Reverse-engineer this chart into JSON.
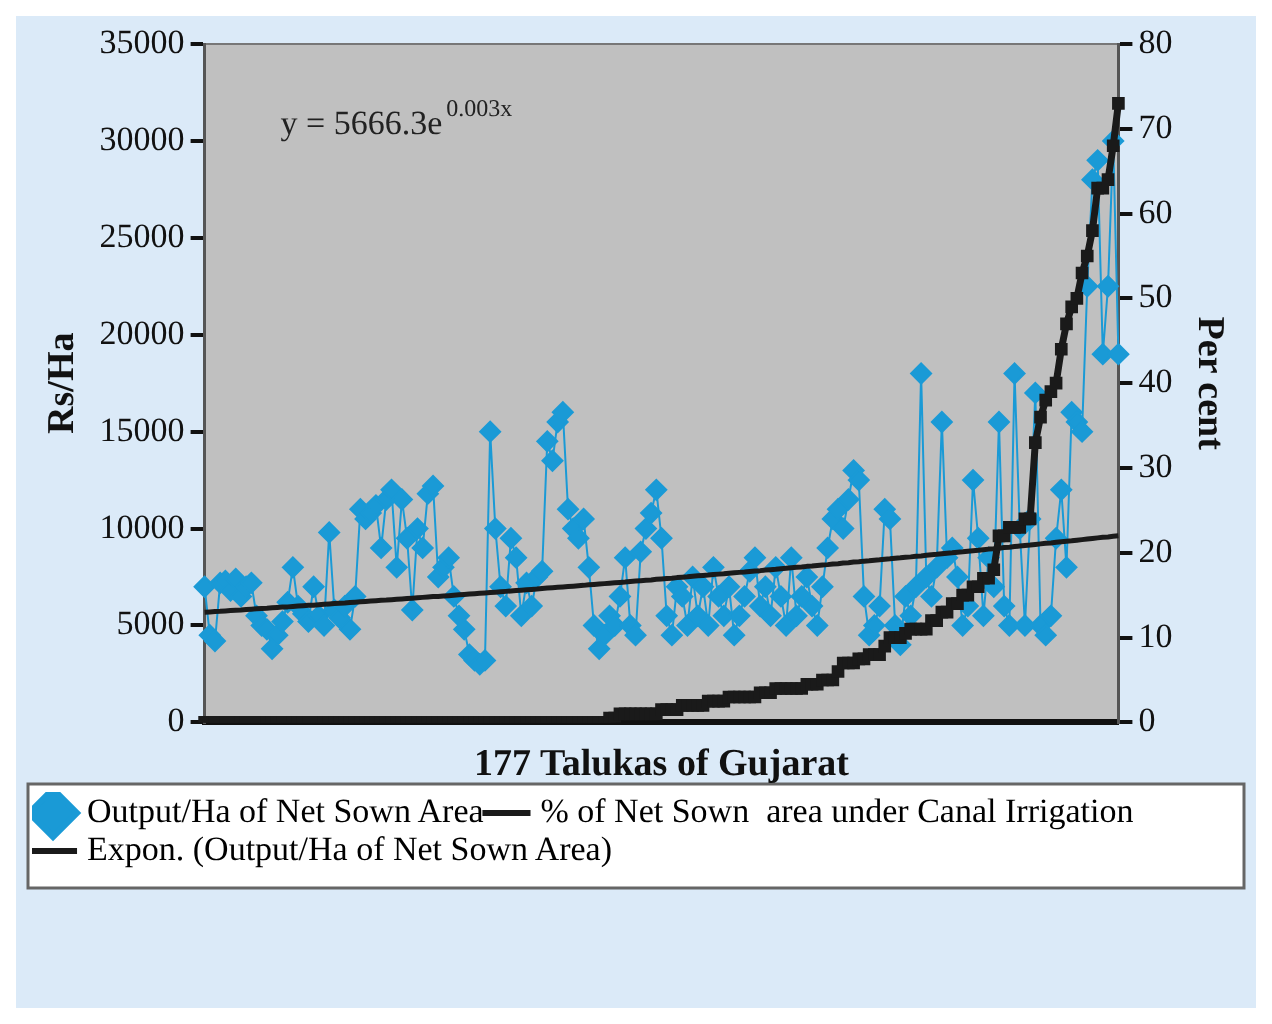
{
  "chart_data": {
    "type": "line",
    "xlabel": "177 Talukas of Gujarat",
    "ylabel": "Rs/Ha",
    "y2label": "Per cent",
    "categories": [
      null,
      null,
      null,
      null,
      null,
      null,
      null,
      null,
      null,
      null,
      null,
      null,
      null,
      null,
      null,
      null,
      null,
      null,
      null,
      null,
      null,
      null,
      null,
      null,
      null,
      null,
      null,
      null,
      null,
      null,
      null,
      null,
      null,
      null,
      null,
      null,
      null,
      null,
      null,
      null,
      null,
      null,
      null,
      null,
      null,
      null,
      null,
      null,
      null,
      null,
      null,
      null,
      null,
      null,
      null,
      null,
      null,
      null,
      null,
      null,
      null,
      null,
      null,
      null,
      null,
      null,
      null,
      null,
      null,
      null,
      null,
      null,
      null,
      null,
      null,
      null,
      null,
      null,
      null,
      null,
      null,
      null,
      null,
      null,
      null,
      null,
      null,
      null,
      null,
      null,
      null,
      null,
      null,
      null,
      null,
      null,
      null,
      null,
      null,
      null,
      null,
      null,
      null,
      null,
      null,
      null,
      null,
      null,
      null,
      null,
      null,
      null,
      null,
      null,
      null,
      null,
      null,
      null,
      null,
      null,
      null,
      null,
      null,
      null,
      null,
      null,
      null,
      null,
      null,
      null,
      null,
      null,
      null,
      null,
      null,
      null,
      null,
      null,
      null,
      null,
      null,
      null,
      null,
      null,
      null,
      null,
      null,
      null,
      null,
      null,
      null,
      null,
      null,
      null,
      null,
      null,
      null,
      null,
      null,
      null,
      null,
      null,
      null,
      null,
      null,
      null,
      null,
      null,
      null,
      null,
      null,
      null,
      null,
      null,
      null,
      null,
      null
    ],
    "series": [
      {
        "name": "Output/Ha of Net Sown Area",
        "color": "#1a9ad6",
        "marker": "diamond",
        "values": [
          7000,
          4500,
          4200,
          7200,
          7300,
          6800,
          7400,
          6500,
          7000,
          7200,
          5500,
          5000,
          4800,
          3800,
          4500,
          5200,
          6200,
          8000,
          6000,
          5600,
          5200,
          7000,
          5500,
          5000,
          9800,
          5800,
          5400,
          6000,
          4800,
          6500,
          11000,
          10500,
          10800,
          11200,
          9000,
          11500,
          12000,
          8000,
          11500,
          9500,
          5800,
          10000,
          9000,
          11800,
          12200,
          7500,
          8000,
          8500,
          6500,
          5500,
          4800,
          3500,
          3200,
          3000,
          3200,
          15000,
          10000,
          7000,
          6000,
          9500,
          8500,
          5500,
          7200,
          6000,
          7500,
          7800,
          14500,
          13500,
          15500,
          16000,
          11000,
          10000,
          9500,
          10500,
          8000,
          5000,
          3800,
          4500,
          5500,
          5000,
          6500,
          8500,
          5000,
          4500,
          8800,
          10000,
          10800,
          12000,
          9500,
          5500,
          4500,
          7000,
          6500,
          5000,
          7500,
          5500,
          7000,
          5000,
          8000,
          6500,
          5500,
          7000,
          4500,
          5500,
          6500,
          7800,
          8500,
          6000,
          7000,
          5500,
          8000,
          6500,
          5000,
          8500,
          5500,
          6500,
          7500,
          6000,
          5000,
          7000,
          9000,
          10500,
          11000,
          10000,
          11500,
          13000,
          12500,
          6500,
          4500,
          5000,
          6000,
          11000,
          10500,
          5000,
          4000,
          6500,
          5500,
          7000,
          18000,
          7500,
          6500,
          8000,
          15500,
          8500,
          9000,
          7500,
          5000,
          6000,
          12500,
          9500,
          5500,
          8500,
          7000,
          15500,
          6000,
          5000,
          18000,
          10000,
          5000,
          10500,
          17000,
          5000,
          4500,
          5500,
          9500,
          12000,
          8000,
          16000,
          15500,
          15000,
          22500,
          28000,
          29000,
          19000,
          22500,
          30000,
          19000
        ]
      },
      {
        "name": "% of Net Sown  area under Canal Irrigation",
        "color": "#1a1a1a",
        "marker": "square",
        "axis": "y2",
        "values": [
          0,
          0,
          0,
          0,
          0,
          0,
          0,
          0,
          0,
          0,
          0,
          0,
          0,
          0,
          0,
          0,
          0,
          0,
          0,
          0,
          0,
          0,
          0,
          0,
          0,
          0,
          0,
          0,
          0,
          0,
          0,
          0,
          0,
          0,
          0,
          0,
          0,
          0,
          0,
          0,
          0,
          0,
          0,
          0,
          0,
          0,
          0,
          0,
          0,
          0,
          0,
          0,
          0,
          0,
          0,
          0,
          0,
          0,
          0,
          0,
          0,
          0,
          0,
          0,
          0,
          0,
          0,
          0,
          0,
          0,
          0,
          0,
          0,
          0,
          0,
          0,
          0,
          0,
          0.5,
          0.5,
          1,
          1,
          1,
          1,
          1,
          1,
          1,
          1,
          1.5,
          1.5,
          1.5,
          1.5,
          2,
          2,
          2,
          2,
          2,
          2.5,
          2.5,
          2.5,
          2.5,
          3,
          3,
          3,
          3,
          3,
          3,
          3.5,
          3.5,
          3.5,
          4,
          4,
          4,
          4,
          4,
          4,
          4.5,
          4.5,
          4.5,
          5,
          5,
          5,
          6,
          7,
          7,
          7,
          7.5,
          7.5,
          8,
          8,
          8,
          9,
          10,
          10,
          10,
          10.5,
          11,
          11,
          11,
          11,
          12,
          12,
          13,
          13,
          14,
          14,
          15,
          15,
          16,
          16,
          17,
          17,
          18,
          22,
          22,
          23,
          23,
          23,
          24,
          24,
          33,
          36,
          38,
          39,
          40,
          44,
          47,
          49,
          50,
          53,
          55,
          58,
          63,
          63,
          64,
          68,
          73
        ]
      },
      {
        "name": "Expon. (Output/Ha of Net Sown Area)",
        "color": "#1a1a1a",
        "marker": "none",
        "type": "line",
        "values": [
          5680,
          5700,
          5720,
          5730,
          5750,
          5770,
          5790,
          5800,
          5820,
          5840,
          5860,
          5880,
          5890,
          5910,
          5930,
          5950,
          5960,
          5980,
          6000,
          6020,
          6040,
          6050,
          6070,
          6090,
          6110,
          6130,
          6150,
          6160,
          6180,
          6200,
          6220,
          6240,
          6260,
          6280,
          6300,
          6310,
          6330,
          6350,
          6370,
          6390,
          6410,
          6430,
          6450,
          6470,
          6490,
          6500,
          6520,
          6540,
          6560,
          6580,
          6600,
          6620,
          6640,
          6660,
          6680,
          6700,
          6720,
          6740,
          6760,
          6780,
          6800,
          6820,
          6840,
          6860,
          6880,
          6910,
          6930,
          6950,
          6970,
          6990,
          7010,
          7030,
          7050,
          7070,
          7100,
          7120,
          7140,
          7160,
          7180,
          7200,
          7220,
          7240,
          7270,
          7290,
          7310,
          7330,
          7350,
          7380,
          7400,
          7420,
          7440,
          7470,
          7490,
          7510,
          7540,
          7560,
          7580,
          7600,
          7630,
          7650,
          7670,
          7700,
          7720,
          7740,
          7760,
          7790,
          7810,
          7830,
          7860,
          7880,
          7900,
          7930,
          7950,
          7980,
          8000,
          8020,
          8050,
          8070,
          8100,
          8120,
          8140,
          8170,
          8190,
          8220,
          8240,
          8270,
          8290,
          8320,
          8340,
          8370,
          8390,
          8420,
          8440,
          8470,
          8490,
          8520,
          8540,
          8570,
          8590,
          8620,
          8650,
          8670,
          8700,
          8730,
          8750,
          8780,
          8800,
          8830,
          8860,
          8880,
          8910,
          8940,
          8960,
          8990,
          9020,
          9040,
          9070,
          9100,
          9130,
          9150,
          9180,
          9210,
          9240,
          9260,
          9290,
          9320,
          9350,
          9370,
          9400,
          9430,
          9460,
          9490,
          9520,
          9550,
          9570,
          9600,
          9630
        ]
      }
    ],
    "ylim": [
      0,
      35000
    ],
    "yticks": [
      0,
      5000,
      10000,
      15000,
      20000,
      25000,
      30000,
      35000
    ],
    "y2lim": [
      0,
      80
    ],
    "y2ticks": [
      0,
      10,
      20,
      30,
      40,
      50,
      60,
      70,
      80
    ],
    "annotations": [
      "y = 5666.3e$^{0.003x}$"
    ],
    "legend": "bottom",
    "tick_labels": "y",
    "grid": false
  }
}
